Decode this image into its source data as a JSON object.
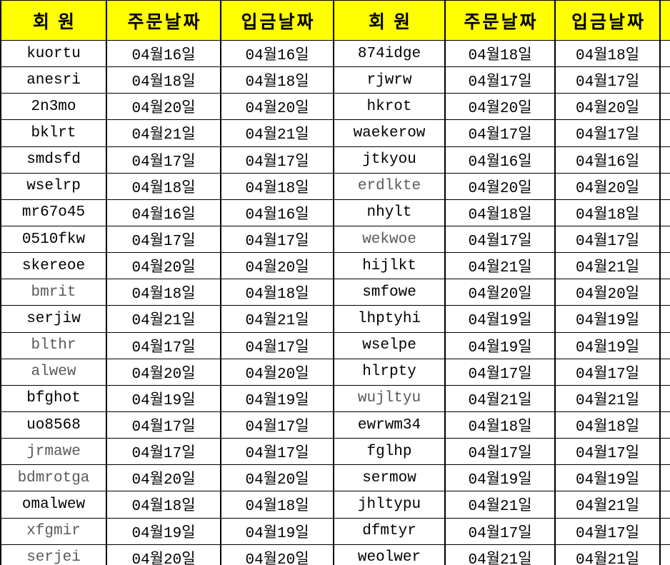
{
  "colors": {
    "header_bg": "#ffff00",
    "grid_border": "#000000",
    "text": "#000000",
    "muted_text": "#595959"
  },
  "header": [
    "회원",
    "주문날짜",
    "입금날짜",
    "회원",
    "주문날짜",
    "입금날짜"
  ],
  "rows": [
    [
      "kuortu",
      "04월16일",
      "04월16일",
      "874idge",
      "04월18일",
      "04월18일"
    ],
    [
      "anesri",
      "04월18일",
      "04월18일",
      "rjwrw",
      "04월17일",
      "04월17일"
    ],
    [
      "2n3mo",
      "04월20일",
      "04월20일",
      "hkrot",
      "04월20일",
      "04월20일"
    ],
    [
      "bklrt",
      "04월21일",
      "04월21일",
      "waekerow",
      "04월17일",
      "04월17일"
    ],
    [
      "smdsfd",
      "04월17일",
      "04월17일",
      "jtkyou",
      "04월16일",
      "04월16일"
    ],
    [
      "wselrp",
      "04월18일",
      "04월18일",
      "erdlkte",
      "04월20일",
      "04월20일"
    ],
    [
      "mr67o45",
      "04월16일",
      "04월16일",
      "nhylt",
      "04월18일",
      "04월18일"
    ],
    [
      "0510fkw",
      "04월17일",
      "04월17일",
      "wekwoe",
      "04월17일",
      "04월17일"
    ],
    [
      "skereoe",
      "04월20일",
      "04월20일",
      "hijlkt",
      "04월21일",
      "04월21일"
    ],
    [
      "bmrit",
      "04월18일",
      "04월18일",
      "smfowe",
      "04월20일",
      "04월20일"
    ],
    [
      "serjiw",
      "04월21일",
      "04월21일",
      "lhptyhi",
      "04월19일",
      "04월19일"
    ],
    [
      "blthr",
      "04월17일",
      "04월17일",
      "wselpe",
      "04월19일",
      "04월19일"
    ],
    [
      "alwew",
      "04월20일",
      "04월20일",
      "hlrpty",
      "04월17일",
      "04월17일"
    ],
    [
      "bfghot",
      "04월19일",
      "04월19일",
      "wujltyu",
      "04월21일",
      "04월21일"
    ],
    [
      "uo8568",
      "04월17일",
      "04월17일",
      "ewrwm34",
      "04월18일",
      "04월18일"
    ],
    [
      "jrmawe",
      "04월17일",
      "04월17일",
      "fglhp",
      "04월17일",
      "04월17일"
    ],
    [
      "bdmrotga",
      "04월20일",
      "04월20일",
      "sermow",
      "04월19일",
      "04월19일"
    ],
    [
      "omalwew",
      "04월18일",
      "04월18일",
      "jhltypu",
      "04월21일",
      "04월21일"
    ],
    [
      "xfgmir",
      "04월19일",
      "04월19일",
      "dfmtyr",
      "04월17일",
      "04월17일"
    ],
    [
      "serjei",
      "04월20일",
      "04월20일",
      "weolwer",
      "04월21일",
      "04월21일"
    ]
  ],
  "muted_members": [
    "bmrit",
    "blthr",
    "alwew",
    "jrmawe",
    "bdmrotga",
    "xfgmir",
    "serjei",
    "erdlkte",
    "wekwoe",
    "wujltyu"
  ]
}
